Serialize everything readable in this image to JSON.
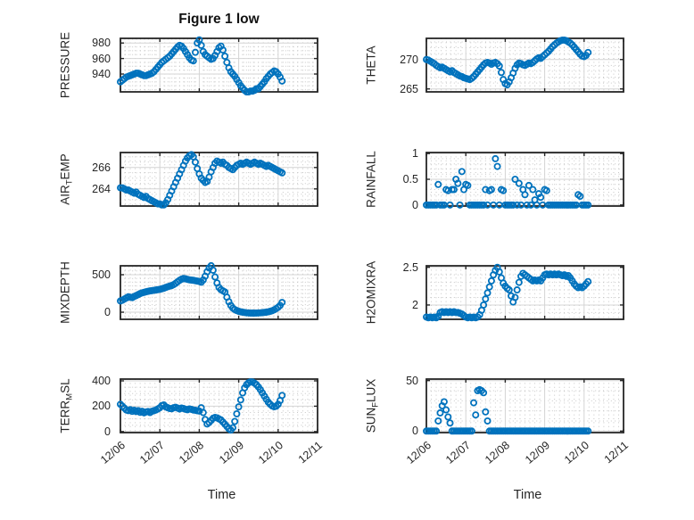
{
  "chart_data": {
    "type": "scatter",
    "title": "Figure 1 low",
    "xlabel": "Time",
    "legend": null,
    "grid": "major-solid-minor-dotted",
    "style": {
      "marker_color": "#0072BD",
      "axis_color": "#262626",
      "grid_color": "#d4d4d4",
      "minor_grid_color": "#c6c6c6",
      "background": "#ffffff"
    },
    "xlim": [
      6,
      11
    ],
    "xticks": [
      6,
      7,
      8,
      9,
      10,
      11
    ],
    "xtick_labels": [
      "12/06",
      "12/07",
      "12/08",
      "12/09",
      "12/10",
      "12/11"
    ],
    "x_minor_step": 0.125,
    "subplots": [
      {
        "name": "pressure",
        "row": 0,
        "col": 0,
        "label": "PRESSURE",
        "label_parts": [
          {
            "text": "PRESSURE",
            "sub": false
          }
        ],
        "ylim": [
          917,
          986
        ],
        "yticks": [
          940,
          960,
          980
        ],
        "ytick_labels": [
          "940",
          "960",
          "980"
        ],
        "y_minor_step": 5,
        "t0": 6,
        "dt": 0.05,
        "values": [
          930,
          932,
          934,
          936,
          937,
          938,
          939,
          940,
          941,
          941,
          940,
          939,
          938,
          938,
          939,
          940,
          941,
          943,
          946,
          949,
          952,
          955,
          957,
          959,
          961,
          963,
          966,
          969,
          972,
          975,
          977,
          976,
          973,
          969,
          965,
          961,
          958,
          957,
          968,
          980,
          984,
          977,
          969,
          965,
          963,
          961,
          959,
          960,
          964,
          969,
          974,
          976,
          971,
          963,
          955,
          948,
          943,
          940,
          937,
          933,
          929,
          925,
          922,
          919,
          917,
          917,
          918,
          918,
          919,
          921,
          921,
          924,
          927,
          930,
          934,
          937,
          940,
          942,
          944,
          943,
          940,
          936,
          931
        ]
      },
      {
        "name": "theta",
        "row": 0,
        "col": 1,
        "label": "THETA",
        "label_parts": [
          {
            "text": "THETA",
            "sub": false
          }
        ],
        "ylim": [
          264.5,
          273.6
        ],
        "yticks": [
          265,
          270
        ],
        "ytick_labels": [
          "265",
          "270"
        ],
        "y_minor_step": 1,
        "t0": 6,
        "dt": 0.05,
        "values": [
          270.0,
          269.9,
          269.7,
          269.5,
          269.3,
          269.0,
          268.8,
          268.6,
          268.7,
          268.5,
          268.3,
          268.1,
          267.9,
          268.1,
          267.8,
          267.6,
          267.4,
          267.2,
          267.1,
          266.9,
          266.8,
          266.7,
          266.6,
          266.8,
          267.1,
          267.5,
          267.9,
          268.3,
          268.7,
          269.1,
          269.4,
          269.5,
          269.4,
          269.2,
          269.4,
          269.5,
          269.3,
          268.9,
          267.8,
          266.6,
          265.9,
          265.7,
          266.2,
          266.9,
          267.7,
          268.5,
          269.1,
          269.4,
          269.3,
          269.1,
          269.0,
          269.2,
          269.4,
          269.3,
          269.5,
          269.8,
          270.1,
          270.3,
          270.2,
          270.5,
          270.8,
          271.1,
          271.4,
          271.8,
          272.2,
          272.5,
          272.8,
          273.0,
          273.2,
          273.3,
          273.3,
          273.2,
          273.0,
          272.8,
          272.5,
          272.1,
          271.7,
          271.3,
          270.9,
          270.6,
          270.5,
          270.7,
          271.2
        ]
      },
      {
        "name": "air-temp",
        "row": 1,
        "col": 0,
        "label": "AIR_TEMP",
        "label_parts": [
          {
            "text": "AIR",
            "sub": false
          },
          {
            "text": "T",
            "sub": true
          },
          {
            "text": "EMP",
            "sub": false
          }
        ],
        "ylim": [
          262.4,
          267.4
        ],
        "yticks": [
          264,
          266
        ],
        "ytick_labels": [
          "264",
          "266"
        ],
        "y_minor_step": 0.5,
        "t0": 6,
        "dt": 0.05,
        "values": [
          264.1,
          264.1,
          264.0,
          263.9,
          263.9,
          263.8,
          263.7,
          263.6,
          263.7,
          263.5,
          263.4,
          263.3,
          263.2,
          263.3,
          263.1,
          263.0,
          262.9,
          262.8,
          262.7,
          262.6,
          262.6,
          262.5,
          262.5,
          262.7,
          263.0,
          263.4,
          263.8,
          264.2,
          264.6,
          265.0,
          265.4,
          265.8,
          266.2,
          266.6,
          266.9,
          267.1,
          267.2,
          267.0,
          266.5,
          265.9,
          265.4,
          265.0,
          264.8,
          264.6,
          264.7,
          265.1,
          265.6,
          266.0,
          266.4,
          266.6,
          266.5,
          266.4,
          266.5,
          266.3,
          266.2,
          266.0,
          265.9,
          265.8,
          266.0,
          266.2,
          266.3,
          266.4,
          266.3,
          266.4,
          266.5,
          266.4,
          266.3,
          266.4,
          266.5,
          266.4,
          266.3,
          266.4,
          266.3,
          266.2,
          266.1,
          266.2,
          266.1,
          266.0,
          265.9,
          265.8,
          265.7,
          265.6,
          265.5
        ]
      },
      {
        "name": "rainfall",
        "row": 1,
        "col": 1,
        "label": "RAINFALL",
        "label_parts": [
          {
            "text": "RAINFALL",
            "sub": false
          }
        ],
        "ylim": [
          -0.02,
          1.02
        ],
        "yticks": [
          0,
          0.5,
          1
        ],
        "ytick_labels": [
          "0",
          "0.5",
          "1"
        ],
        "y_minor_step": 0.1,
        "t0": 6,
        "dt": 0.05,
        "values": [
          0,
          0,
          0,
          0,
          0,
          0,
          0.4,
          0,
          0,
          0,
          0.3,
          0.28,
          0,
          0.3,
          0.3,
          0.5,
          0.42,
          0,
          0.65,
          0.3,
          0.4,
          0.38,
          0,
          0,
          0,
          0,
          0,
          0,
          0,
          0,
          0.3,
          0,
          0.28,
          0.3,
          0,
          0.9,
          0.75,
          0,
          0.3,
          0.28,
          0,
          0,
          0,
          0,
          0,
          0.5,
          0,
          0.42,
          0,
          0.3,
          0.2,
          0,
          0.38,
          0,
          0.3,
          0.1,
          0,
          0.22,
          0.15,
          0,
          0.3,
          0.28,
          0,
          0,
          0,
          0,
          0,
          0,
          0,
          0,
          0,
          0,
          0,
          0,
          0,
          0,
          0,
          0.2,
          0.17,
          0,
          0,
          0,
          0
        ]
      },
      {
        "name": "mixdepth",
        "row": 2,
        "col": 0,
        "label": "MIXDEPTH",
        "label_parts": [
          {
            "text": "MIXDEPTH",
            "sub": false
          }
        ],
        "ylim": [
          -95,
          619
        ],
        "yticks": [
          0,
          500
        ],
        "ytick_labels": [
          "0",
          "500"
        ],
        "y_minor_step": 50,
        "t0": 6,
        "dt": 0.05,
        "values": [
          150,
          160,
          175,
          190,
          205,
          200,
          195,
          210,
          222,
          235,
          248,
          258,
          265,
          272,
          278,
          284,
          288,
          292,
          296,
          300,
          305,
          312,
          320,
          330,
          340,
          348,
          355,
          368,
          385,
          405,
          425,
          440,
          450,
          445,
          438,
          432,
          428,
          425,
          420,
          415,
          410,
          400,
          430,
          480,
          540,
          590,
          620,
          560,
          470,
          390,
          330,
          300,
          285,
          270,
          200,
          140,
          90,
          55,
          35,
          22,
          12,
          5,
          0,
          -4,
          -8,
          -10,
          -12,
          -12,
          -12,
          -11,
          -10,
          -8,
          -6,
          -3,
          0,
          5,
          12,
          20,
          32,
          48,
          65,
          90,
          130
        ]
      },
      {
        "name": "h2omixra",
        "row": 2,
        "col": 1,
        "label": "H2OMIXRA",
        "label_parts": [
          {
            "text": "H2OMIXRA",
            "sub": false
          }
        ],
        "ylim": [
          1.81,
          2.52
        ],
        "yticks": [
          2,
          2.5
        ],
        "ytick_labels": [
          "2",
          "2.5"
        ],
        "y_minor_step": 0.1,
        "t0": 6,
        "dt": 0.05,
        "values": [
          1.84,
          1.83,
          1.84,
          1.83,
          1.84,
          1.83,
          1.85,
          1.9,
          1.91,
          1.9,
          1.91,
          1.9,
          1.91,
          1.9,
          1.91,
          1.9,
          1.9,
          1.89,
          1.88,
          1.86,
          1.84,
          1.83,
          1.84,
          1.83,
          1.84,
          1.83,
          1.84,
          1.87,
          1.93,
          2.0,
          2.08,
          2.16,
          2.24,
          2.32,
          2.4,
          2.46,
          2.5,
          2.44,
          2.36,
          2.29,
          2.25,
          2.22,
          2.2,
          2.12,
          2.04,
          2.1,
          2.2,
          2.3,
          2.38,
          2.42,
          2.4,
          2.38,
          2.36,
          2.34,
          2.32,
          2.33,
          2.32,
          2.33,
          2.32,
          2.36,
          2.4,
          2.41,
          2.4,
          2.41,
          2.4,
          2.41,
          2.4,
          2.41,
          2.4,
          2.39,
          2.4,
          2.38,
          2.39,
          2.36,
          2.32,
          2.28,
          2.25,
          2.23,
          2.24,
          2.23,
          2.25,
          2.28,
          2.31
        ]
      },
      {
        "name": "terr-msl",
        "row": 3,
        "col": 0,
        "label": "TERR_MSL",
        "label_parts": [
          {
            "text": "TERR",
            "sub": false
          },
          {
            "text": "M",
            "sub": true
          },
          {
            "text": "SL",
            "sub": false
          }
        ],
        "ylim": [
          -8,
          414
        ],
        "yticks": [
          0,
          200,
          400
        ],
        "ytick_labels": [
          "0",
          "200",
          "400"
        ],
        "y_minor_step": 50,
        "t0": 6,
        "dt": 0.05,
        "values": [
          215,
          200,
          185,
          170,
          165,
          172,
          160,
          168,
          158,
          165,
          152,
          160,
          148,
          155,
          158,
          150,
          160,
          165,
          170,
          178,
          188,
          205,
          210,
          195,
          188,
          182,
          180,
          188,
          192,
          185,
          178,
          185,
          182,
          176,
          172,
          178,
          175,
          170,
          168,
          164,
          162,
          188,
          150,
          95,
          60,
          72,
          88,
          105,
          112,
          108,
          100,
          92,
          75,
          58,
          40,
          22,
          12,
          30,
          80,
          140,
          195,
          250,
          305,
          345,
          370,
          385,
          392,
          390,
          382,
          370,
          352,
          330,
          305,
          280,
          255,
          232,
          215,
          202,
          196,
          200,
          215,
          245,
          285
        ]
      },
      {
        "name": "sun-flux",
        "row": 3,
        "col": 1,
        "label": "SUN_FLUX",
        "label_parts": [
          {
            "text": "SUN",
            "sub": false
          },
          {
            "text": "F",
            "sub": true
          },
          {
            "text": "LUX",
            "sub": false
          }
        ],
        "ylim": [
          -1.5,
          51.5
        ],
        "yticks": [
          0,
          50
        ],
        "ytick_labels": [
          "0",
          "50"
        ],
        "y_minor_step": 10,
        "t0": 6,
        "dt": 0.05,
        "values": [
          0,
          0,
          0,
          0,
          0,
          0,
          10,
          18,
          25,
          29,
          21,
          14,
          8,
          0,
          0,
          0,
          0,
          0,
          0,
          0,
          0,
          0,
          0,
          0,
          28,
          16,
          40,
          41,
          40,
          38,
          19,
          10,
          0,
          0,
          0,
          0,
          0,
          0,
          0,
          0,
          0,
          0,
          0,
          0,
          0,
          0,
          0,
          0,
          0,
          0,
          0,
          0,
          0,
          0,
          0,
          0,
          0,
          0,
          0,
          0,
          0,
          0,
          0,
          0,
          0,
          0,
          0,
          0,
          0,
          0,
          0,
          0,
          0,
          0,
          0,
          0,
          0,
          0,
          0,
          0,
          0,
          0,
          0
        ]
      }
    ]
  }
}
